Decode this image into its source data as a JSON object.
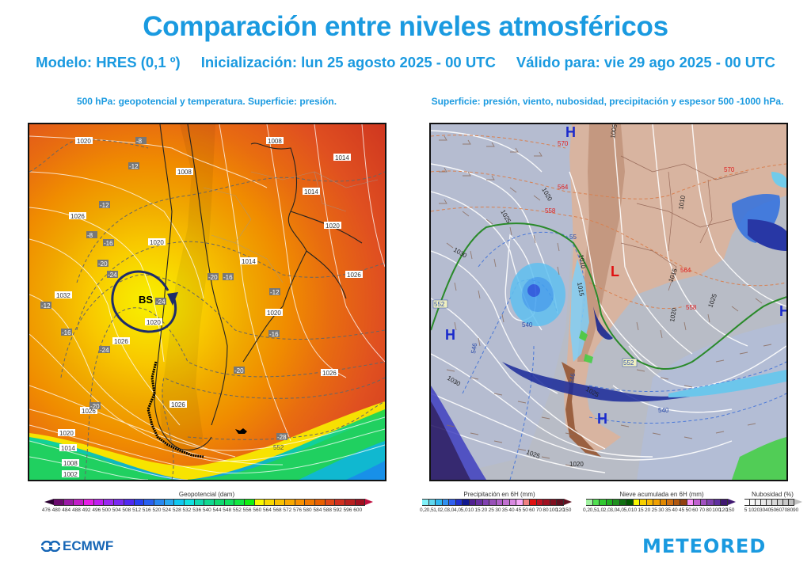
{
  "header": {
    "title": "Comparación entre niveles atmosféricos",
    "model": "Modelo: HRES (0,1 º)",
    "init": "Inicialización: lun 25 agosto 2025 - 00 UTC",
    "valid": "Válido para: vie 29 ago 2025 - 00 UTC"
  },
  "left_panel": {
    "caption": "500 hPa: geopotencial y temperatura. Superficie: presión.",
    "annotation": "BS",
    "pressure_labels": [
      "1020",
      "1026",
      "1032",
      "1020",
      "1008",
      "1014",
      "1008",
      "1014",
      "1020",
      "1014",
      "1020",
      "1026",
      "1026",
      "1020",
      "1026",
      "1020",
      "1014",
      "1008",
      "1002",
      "1026",
      "1026"
    ],
    "temp_labels": [
      "-8",
      "-12",
      "-16",
      "-20",
      "-24",
      "-24",
      "-20",
      "-16",
      "-12",
      "-8",
      "-12",
      "-16",
      "-20",
      "-24",
      "-28",
      "-20",
      "-16",
      "-12"
    ],
    "geopotential_label": "552",
    "colorbar": {
      "title": "Geopotencial (dam)",
      "ticks": [
        "476",
        "480",
        "484",
        "488",
        "492",
        "496",
        "500",
        "504",
        "508",
        "512",
        "516",
        "520",
        "524",
        "528",
        "532",
        "536",
        "540",
        "544",
        "548",
        "552",
        "556",
        "560",
        "564",
        "568",
        "572",
        "576",
        "580",
        "584",
        "588",
        "592",
        "596",
        "600"
      ],
      "colors": [
        "#2a0030",
        "#6a0a6e",
        "#9a1aa6",
        "#c21ec8",
        "#e61ee6",
        "#c01ef0",
        "#9a28f0",
        "#7a28f0",
        "#5028f0",
        "#2840f0",
        "#2860f0",
        "#2888f0",
        "#28a8f0",
        "#10c8f0",
        "#10e0e0",
        "#10d8b0",
        "#10d890",
        "#10d870",
        "#10e060",
        "#10e840",
        "#10f010",
        "#f8f800",
        "#f8d800",
        "#f8c000",
        "#f8a800",
        "#f89000",
        "#f07800",
        "#e86000",
        "#e04818",
        "#d03020",
        "#b82020",
        "#a01020",
        "#c01040"
      ]
    },
    "logo": "ECMWF"
  },
  "right_panel": {
    "caption": "Superficie: presión, viento, nubosidad, precipitación y espesor 500 -1000 hPa.",
    "high_labels": [
      "H",
      "H",
      "H",
      "H"
    ],
    "low_labels": [
      "L"
    ],
    "pressure_labels": [
      "1020",
      "1025",
      "1030",
      "1010",
      "1015",
      "1005",
      "1010",
      "1015",
      "1020",
      "1025",
      "1030",
      "1020",
      "1025",
      "1025"
    ],
    "thickness_labels": [
      "570",
      "564",
      "558",
      "552",
      "546",
      "540",
      "540",
      "546",
      "552",
      "558",
      "564",
      "570",
      "55"
    ],
    "colorbars": [
      {
        "title": "Precipitación en 6H (mm)",
        "ticks": [
          "0,2",
          "0,5",
          "1,0",
          "2,0",
          "3,0",
          "4,0",
          "5,0",
          "10",
          "15",
          "20",
          "25",
          "30",
          "35",
          "40",
          "45",
          "50",
          "60",
          "70",
          "80",
          "100",
          "120",
          "150"
        ],
        "colors": [
          "#80f0f8",
          "#60d8f0",
          "#30b8f0",
          "#3090f0",
          "#3060f0",
          "#2030d0",
          "#101890",
          "#502090",
          "#6830a0",
          "#8040b0",
          "#9850b8",
          "#b060c8",
          "#c070d0",
          "#d888e0",
          "#f8a8f8",
          "#f08080",
          "#e01010",
          "#c01020",
          "#a01020",
          "#801020",
          "#601020",
          "#401010"
        ]
      },
      {
        "title": "Nieve acumulada en 6H (mm)",
        "ticks": [
          "0,2",
          "0,5",
          "1,0",
          "2,0",
          "3,0",
          "4,0",
          "5,0",
          "10",
          "15",
          "20",
          "25",
          "30",
          "35",
          "40",
          "45",
          "50",
          "60",
          "70",
          "80",
          "100",
          "120",
          "150"
        ],
        "colors": [
          "#a0f0a0",
          "#50e050",
          "#30c830",
          "#20b020",
          "#209020",
          "#107010",
          "#005800",
          "#f8f800",
          "#f8d000",
          "#f8b800",
          "#f0a000",
          "#e08800",
          "#d07010",
          "#b05810",
          "#904010",
          "#f890f8",
          "#c060d0",
          "#a050c0",
          "#8040b0",
          "#6030a0",
          "#401870",
          "#301060"
        ]
      },
      {
        "title": "Nubosidad (%)",
        "ticks": [
          "5",
          "10",
          "20",
          "30",
          "40",
          "50",
          "60",
          "70",
          "80",
          "90"
        ],
        "colors": [
          "#ffffff",
          "#f8f8f8",
          "#f0f0f0",
          "#e8e8e8",
          "#e0e0e0",
          "#d8d8d8",
          "#d0d0d0",
          "#c8c8c8",
          "#c0c0c0",
          "#b8b8b8"
        ]
      }
    ],
    "logo": "METEORED"
  }
}
